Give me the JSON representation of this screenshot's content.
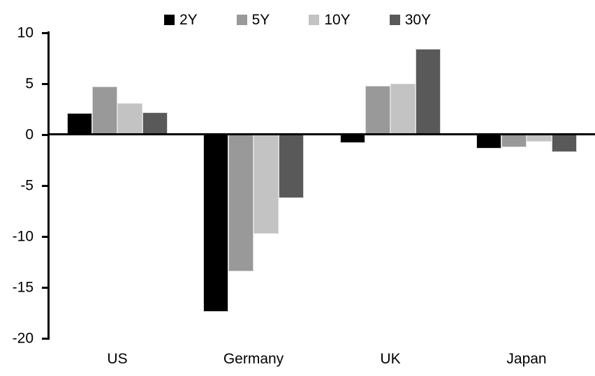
{
  "chart_data": {
    "type": "bar",
    "title": "",
    "xlabel": "",
    "ylabel": "",
    "categories": [
      "US",
      "Germany",
      "UK",
      "Japan"
    ],
    "series": [
      {
        "name": "2Y",
        "color": "#000000",
        "values": [
          2.1,
          -17.4,
          -0.8,
          -1.4
        ]
      },
      {
        "name": "5Y",
        "color": "#999999",
        "values": [
          4.7,
          -13.4,
          4.8,
          -1.2
        ]
      },
      {
        "name": "10Y",
        "color": "#c3c3c3",
        "values": [
          3.1,
          -9.7,
          5.0,
          -0.7
        ]
      },
      {
        "name": "30Y",
        "color": "#595959",
        "values": [
          2.2,
          -6.2,
          8.4,
          -1.7
        ]
      }
    ],
    "ylim": [
      -20,
      10
    ],
    "yticks": [
      10,
      5,
      0,
      -5,
      -10,
      -15,
      -20
    ],
    "grid": false,
    "legend_position": "top",
    "axis_color": "#000000",
    "background": "#ffffff"
  }
}
